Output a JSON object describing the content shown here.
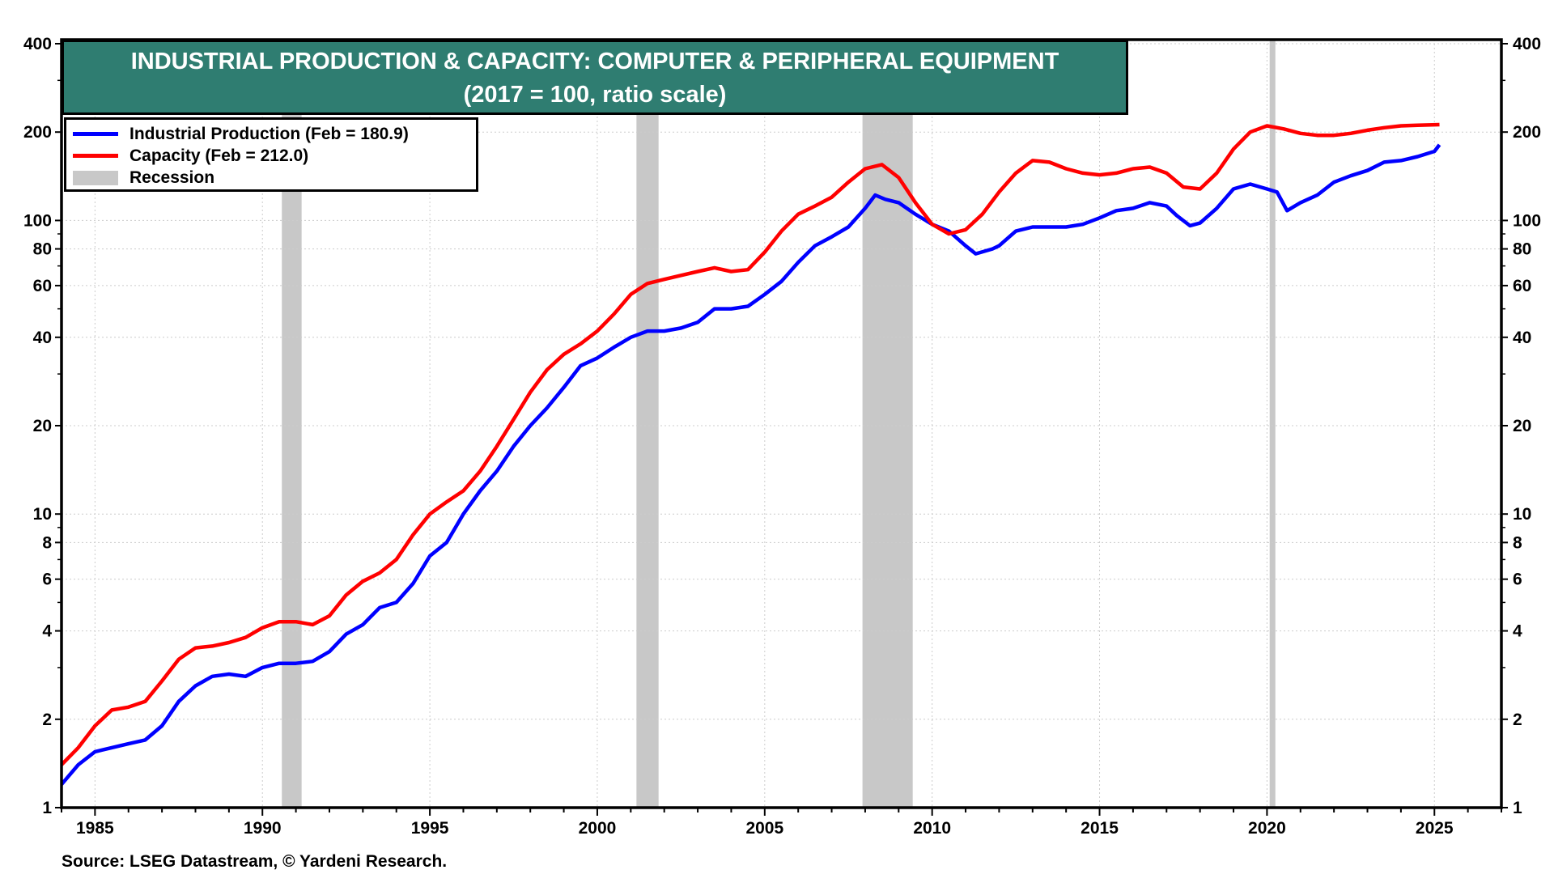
{
  "chart_data": {
    "type": "line",
    "title": "INDUSTRIAL PRODUCTION & CAPACITY: COMPUTER & PERIPHERAL EQUIPMENT",
    "subtitle": "(2017 = 100, ratio scale)",
    "yscale": "log",
    "ylim": [
      1,
      400
    ],
    "xlim": [
      1984,
      2027
    ],
    "yticks": [
      1,
      2,
      4,
      6,
      8,
      10,
      20,
      40,
      60,
      80,
      100,
      200,
      400
    ],
    "xticks": [
      1985,
      1990,
      1995,
      2000,
      2005,
      2010,
      2015,
      2020,
      2025
    ],
    "grid": true,
    "legend_position": "top-left",
    "legend": [
      {
        "label": "Industrial Production (Feb = 180.9)",
        "color": "#0000ff",
        "kind": "line"
      },
      {
        "label": "Capacity (Feb = 212.0)",
        "color": "#ff0000",
        "kind": "line"
      },
      {
        "label": "Recession",
        "color": "#c8c8c8",
        "kind": "band"
      }
    ],
    "recessions": [
      [
        1990.58,
        1991.17
      ],
      [
        2001.17,
        2001.83
      ],
      [
        2007.92,
        2009.42
      ],
      [
        2020.08,
        2020.25
      ]
    ],
    "series": [
      {
        "name": "Industrial Production",
        "color": "#0000ff",
        "x": [
          1984,
          1984.5,
          1985,
          1985.5,
          1986,
          1986.5,
          1987,
          1987.5,
          1988,
          1988.5,
          1989,
          1989.5,
          1990,
          1990.5,
          1991,
          1991.5,
          1992,
          1992.5,
          1993,
          1993.5,
          1994,
          1994.5,
          1995,
          1995.5,
          1996,
          1996.5,
          1997,
          1997.5,
          1998,
          1998.5,
          1999,
          1999.5,
          2000,
          2000.5,
          2001,
          2001.5,
          2002,
          2002.5,
          2003,
          2003.5,
          2004,
          2004.5,
          2005,
          2005.5,
          2006,
          2006.5,
          2007,
          2007.5,
          2008,
          2008.3,
          2008.6,
          2009,
          2009.5,
          2010,
          2010.5,
          2011,
          2011.3,
          2011.8,
          2012,
          2012.5,
          2013,
          2013.5,
          2014,
          2014.5,
          2015,
          2015.5,
          2016,
          2016.5,
          2017,
          2017.3,
          2017.7,
          2018,
          2018.5,
          2019,
          2019.5,
          2020,
          2020.3,
          2020.6,
          2021,
          2021.5,
          2022,
          2022.5,
          2023,
          2023.5,
          2024,
          2024.5,
          2025,
          2025.15
        ],
        "values": [
          1.2,
          1.4,
          1.55,
          1.6,
          1.65,
          1.7,
          1.9,
          2.3,
          2.6,
          2.8,
          2.85,
          2.8,
          3.0,
          3.1,
          3.1,
          3.15,
          3.4,
          3.9,
          4.2,
          4.8,
          5.0,
          5.8,
          7.2,
          8.0,
          10,
          12,
          14,
          17,
          20,
          23,
          27,
          32,
          34,
          37,
          40,
          42,
          42,
          43,
          45,
          50,
          50,
          51,
          56,
          62,
          72,
          82,
          88,
          95,
          110,
          122,
          118,
          115,
          105,
          97,
          92,
          82,
          77,
          80,
          82,
          92,
          95,
          95,
          95,
          97,
          102,
          108,
          110,
          115,
          112,
          104,
          96,
          98,
          110,
          128,
          133,
          128,
          125,
          108,
          115,
          122,
          135,
          142,
          148,
          158,
          160,
          165,
          172,
          181
        ]
      },
      {
        "name": "Capacity",
        "color": "#ff0000",
        "x": [
          1984,
          1984.5,
          1985,
          1985.5,
          1986,
          1986.5,
          1987,
          1987.5,
          1988,
          1988.5,
          1989,
          1989.5,
          1990,
          1990.5,
          1991,
          1991.5,
          1992,
          1992.5,
          1993,
          1993.5,
          1994,
          1994.5,
          1995,
          1995.5,
          1996,
          1996.5,
          1997,
          1997.5,
          1998,
          1998.5,
          1999,
          1999.5,
          2000,
          2000.5,
          2001,
          2001.5,
          2002,
          2002.5,
          2003,
          2003.5,
          2004,
          2004.5,
          2005,
          2005.5,
          2006,
          2006.5,
          2007,
          2007.5,
          2008,
          2008.5,
          2009,
          2009.5,
          2010,
          2010.5,
          2011,
          2011.5,
          2012,
          2012.5,
          2013,
          2013.5,
          2014,
          2014.5,
          2015,
          2015.5,
          2016,
          2016.5,
          2017,
          2017.5,
          2018,
          2018.5,
          2019,
          2019.5,
          2020,
          2020.5,
          2021,
          2021.5,
          2022,
          2022.5,
          2023,
          2023.5,
          2024,
          2024.5,
          2025.15
        ],
        "values": [
          1.4,
          1.6,
          1.9,
          2.15,
          2.2,
          2.3,
          2.7,
          3.2,
          3.5,
          3.55,
          3.65,
          3.8,
          4.1,
          4.3,
          4.3,
          4.2,
          4.5,
          5.3,
          5.9,
          6.3,
          7.0,
          8.5,
          10,
          11,
          12,
          14,
          17,
          21,
          26,
          31,
          35,
          38,
          42,
          48,
          56,
          61,
          63,
          65,
          67,
          69,
          67,
          68,
          78,
          92,
          105,
          112,
          120,
          135,
          150,
          155,
          140,
          115,
          97,
          90,
          93,
          105,
          125,
          145,
          160,
          158,
          150,
          145,
          143,
          145,
          150,
          152,
          145,
          130,
          128,
          145,
          175,
          200,
          210,
          205,
          198,
          195,
          195,
          198,
          203,
          207,
          210,
          211,
          212
        ]
      }
    ],
    "source": "Source: LSEG Datastream, © Yardeni Research."
  }
}
